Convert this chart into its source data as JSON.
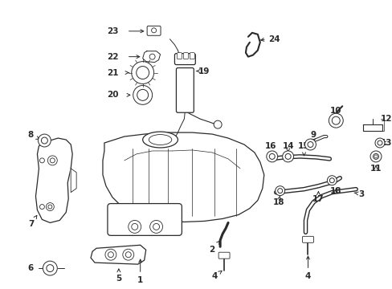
{
  "bg_color": "#ffffff",
  "lc": "#2a2a2a",
  "lw": 0.9,
  "fs": 7.5,
  "figsize": [
    4.89,
    3.6
  ],
  "dpi": 100,
  "xlim": [
    0,
    489
  ],
  "ylim": [
    0,
    360
  ]
}
